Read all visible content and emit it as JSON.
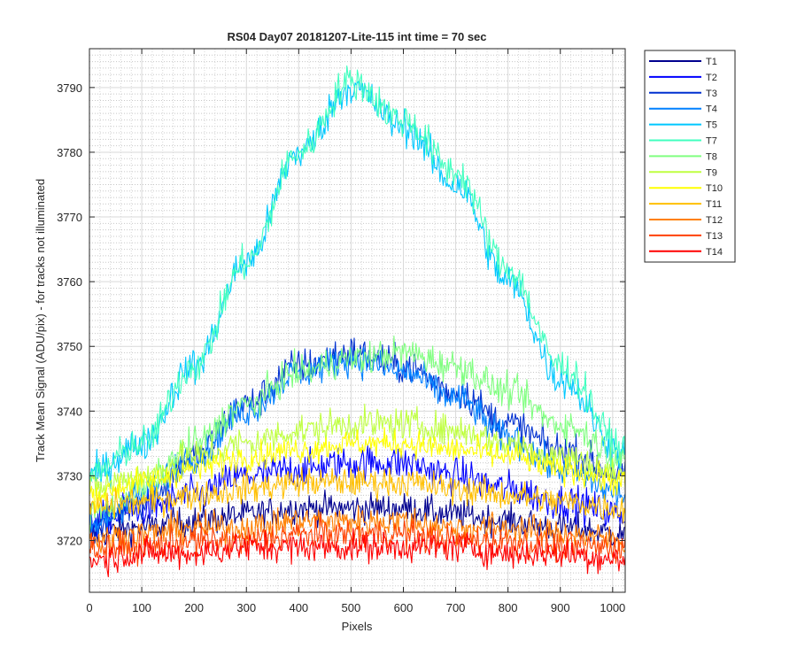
{
  "chart_data": {
    "type": "line",
    "title": "RS04 Day07 20181207-Lite-115 int time = 70 sec",
    "xlabel": "Pixels",
    "ylabel": "Track Mean Signal (ADU/pix) - for tracks not illuminated",
    "xlim": [
      0,
      1024
    ],
    "ylim": [
      3712,
      3796
    ],
    "xticks": [
      0,
      100,
      200,
      300,
      400,
      500,
      600,
      700,
      800,
      900,
      1000
    ],
    "yticks": [
      3720,
      3730,
      3740,
      3750,
      3760,
      3770,
      3780,
      3790
    ],
    "grid": true,
    "minor_grid": true,
    "legend": "outside top-right",
    "x": [
      0,
      100,
      200,
      300,
      400,
      500,
      600,
      700,
      800,
      900,
      1024
    ],
    "series": [
      {
        "name": "T1",
        "color": "#00008f",
        "noise": 2.2,
        "values": [
          3721,
          3722,
          3723,
          3724,
          3725,
          3725,
          3725,
          3724,
          3723,
          3722,
          3721
        ]
      },
      {
        "name": "T2",
        "color": "#0000ff",
        "noise": 2.6,
        "values": [
          3723,
          3725,
          3727,
          3730,
          3731,
          3732,
          3732,
          3730,
          3728,
          3726,
          3724
        ]
      },
      {
        "name": "T3",
        "color": "#0030d0",
        "noise": 2.6,
        "values": [
          3722,
          3726,
          3733,
          3741,
          3747,
          3749,
          3747,
          3743,
          3738,
          3734,
          3730
        ]
      },
      {
        "name": "T4",
        "color": "#0080ff",
        "noise": 2.4,
        "values": [
          3722,
          3727,
          3733,
          3740,
          3746,
          3748,
          3746,
          3742,
          3736,
          3731,
          3727
        ]
      },
      {
        "name": "T5",
        "color": "#00c8ff",
        "noise": 2.6,
        "values": [
          3730,
          3735,
          3747,
          3763,
          3780,
          3790,
          3784,
          3775,
          3760,
          3745,
          3733
        ]
      },
      {
        "name": "T7",
        "color": "#40ffbf",
        "noise": 2.6,
        "values": [
          3730,
          3735,
          3747,
          3763,
          3780,
          3791,
          3785,
          3777,
          3762,
          3747,
          3734
        ]
      },
      {
        "name": "T8",
        "color": "#80ff80",
        "noise": 2.4,
        "values": [
          3724,
          3728,
          3735,
          3741,
          3746,
          3748,
          3749,
          3747,
          3743,
          3738,
          3733
        ]
      },
      {
        "name": "T9",
        "color": "#bfff40",
        "noise": 2.4,
        "values": [
          3728,
          3730,
          3733,
          3735,
          3737,
          3738,
          3738,
          3737,
          3735,
          3733,
          3730
        ]
      },
      {
        "name": "T10",
        "color": "#ffff00",
        "noise": 2.0,
        "values": [
          3727,
          3729,
          3731,
          3733,
          3734,
          3735,
          3735,
          3734,
          3733,
          3731,
          3729
        ]
      },
      {
        "name": "T11",
        "color": "#ffbf00",
        "noise": 2.2,
        "values": [
          3725,
          3726,
          3727,
          3728,
          3729,
          3729,
          3729,
          3728,
          3727,
          3726,
          3725
        ]
      },
      {
        "name": "T12",
        "color": "#ff8000",
        "noise": 2.2,
        "values": [
          3720,
          3721,
          3722,
          3722,
          3723,
          3723,
          3723,
          3722,
          3722,
          3721,
          3720
        ]
      },
      {
        "name": "T13",
        "color": "#ff4000",
        "noise": 2.2,
        "values": [
          3719,
          3719,
          3720,
          3720,
          3721,
          3721,
          3721,
          3720,
          3720,
          3719,
          3719
        ]
      },
      {
        "name": "T14",
        "color": "#ff0000",
        "noise": 2.2,
        "values": [
          3717,
          3718,
          3718,
          3719,
          3719,
          3719,
          3719,
          3719,
          3718,
          3718,
          3717
        ]
      }
    ]
  }
}
